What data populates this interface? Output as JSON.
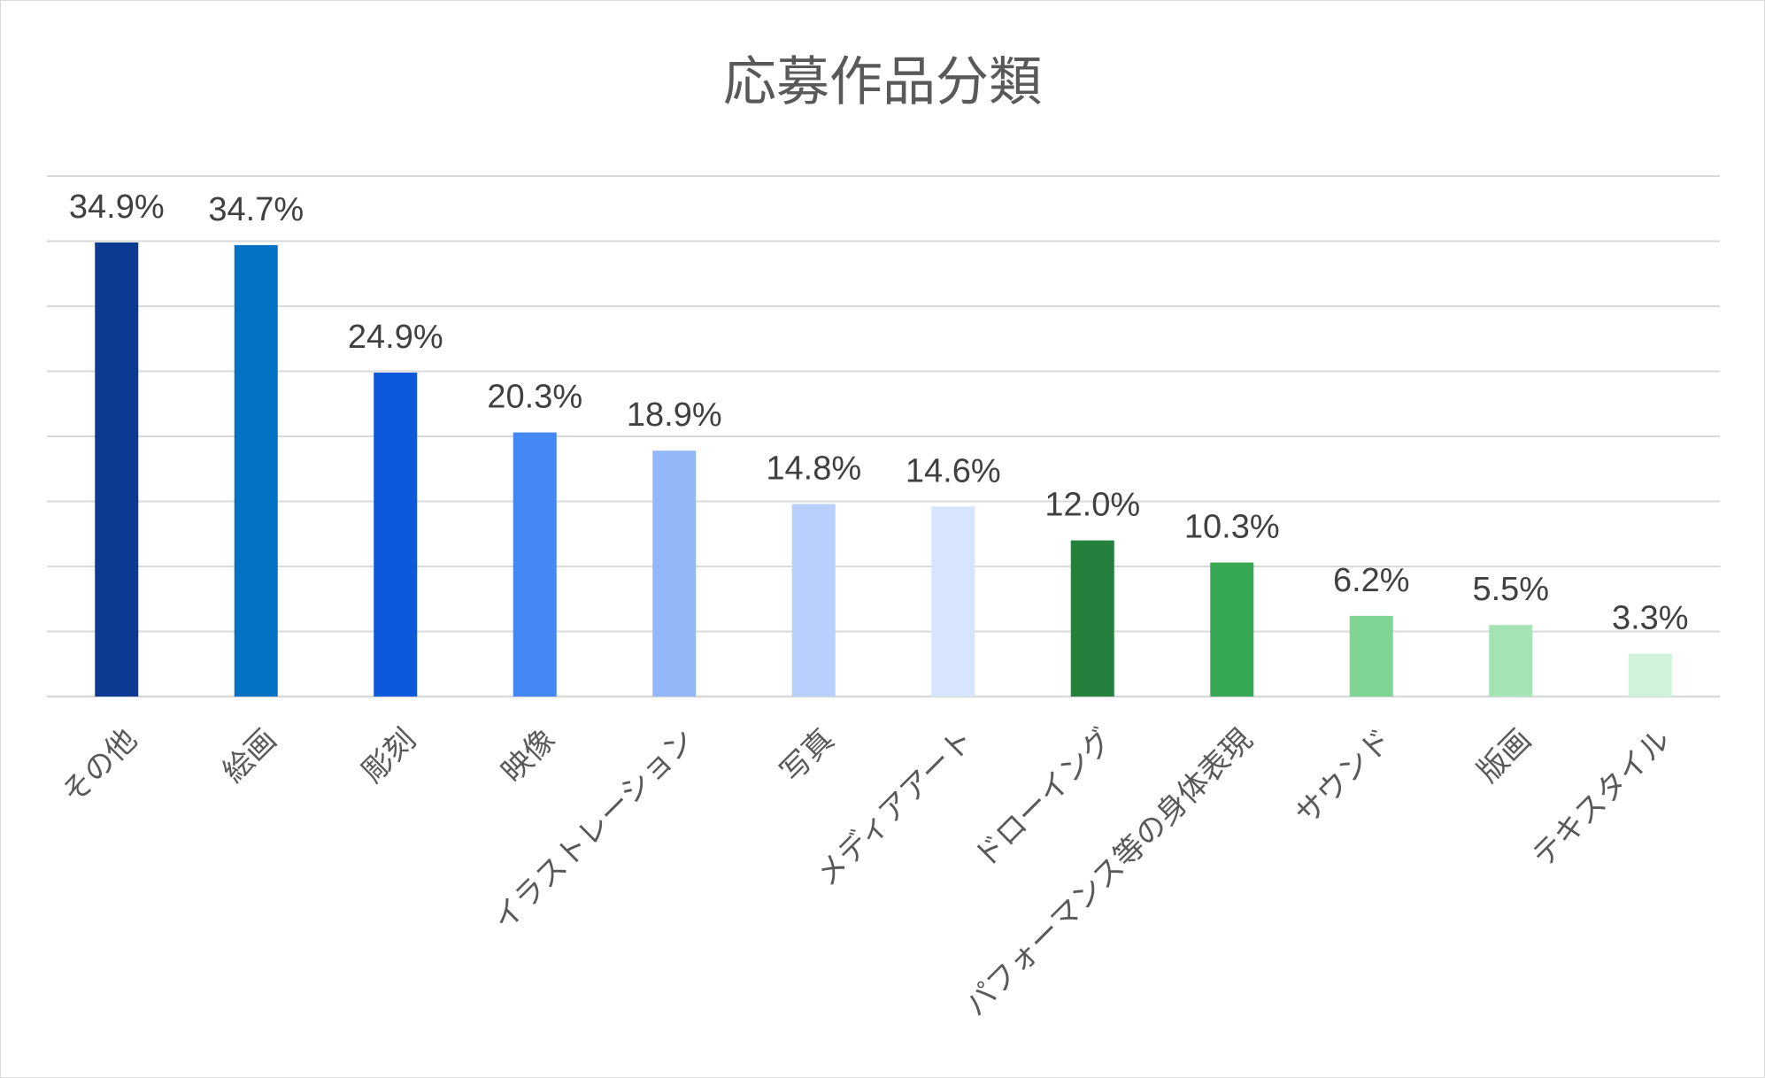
{
  "chart_data": {
    "type": "bar",
    "title": "応募作品分類",
    "xlabel": "",
    "ylabel": "",
    "ylim": [
      0,
      40
    ],
    "grid": true,
    "legend": "none",
    "categories": [
      "その他",
      "絵画",
      "彫刻",
      "映像",
      "イラストレーション",
      "写真",
      "メディアアート",
      "ドローイング",
      "パフォーマンス等の身体表現",
      "サウンド",
      "版画",
      "テキスタイル"
    ],
    "values": [
      34.9,
      34.7,
      24.9,
      20.3,
      18.9,
      14.8,
      14.6,
      12.0,
      10.3,
      6.2,
      5.5,
      3.3
    ],
    "data_labels": [
      "34.9%",
      "34.7%",
      "24.9%",
      "20.3%",
      "18.9%",
      "14.8%",
      "14.6%",
      "12.0%",
      "10.3%",
      "6.2%",
      "5.5%",
      "3.3%"
    ],
    "colors": [
      "#0c3a92",
      "#0471c4",
      "#0e59db",
      "#4488f4",
      "#92b8f9",
      "#b8d0fb",
      "#d7e5fc",
      "#25803e",
      "#36a853",
      "#7fd594",
      "#a4e3b4",
      "#d0f1da"
    ],
    "gridline_color": "#d9d9d9"
  }
}
